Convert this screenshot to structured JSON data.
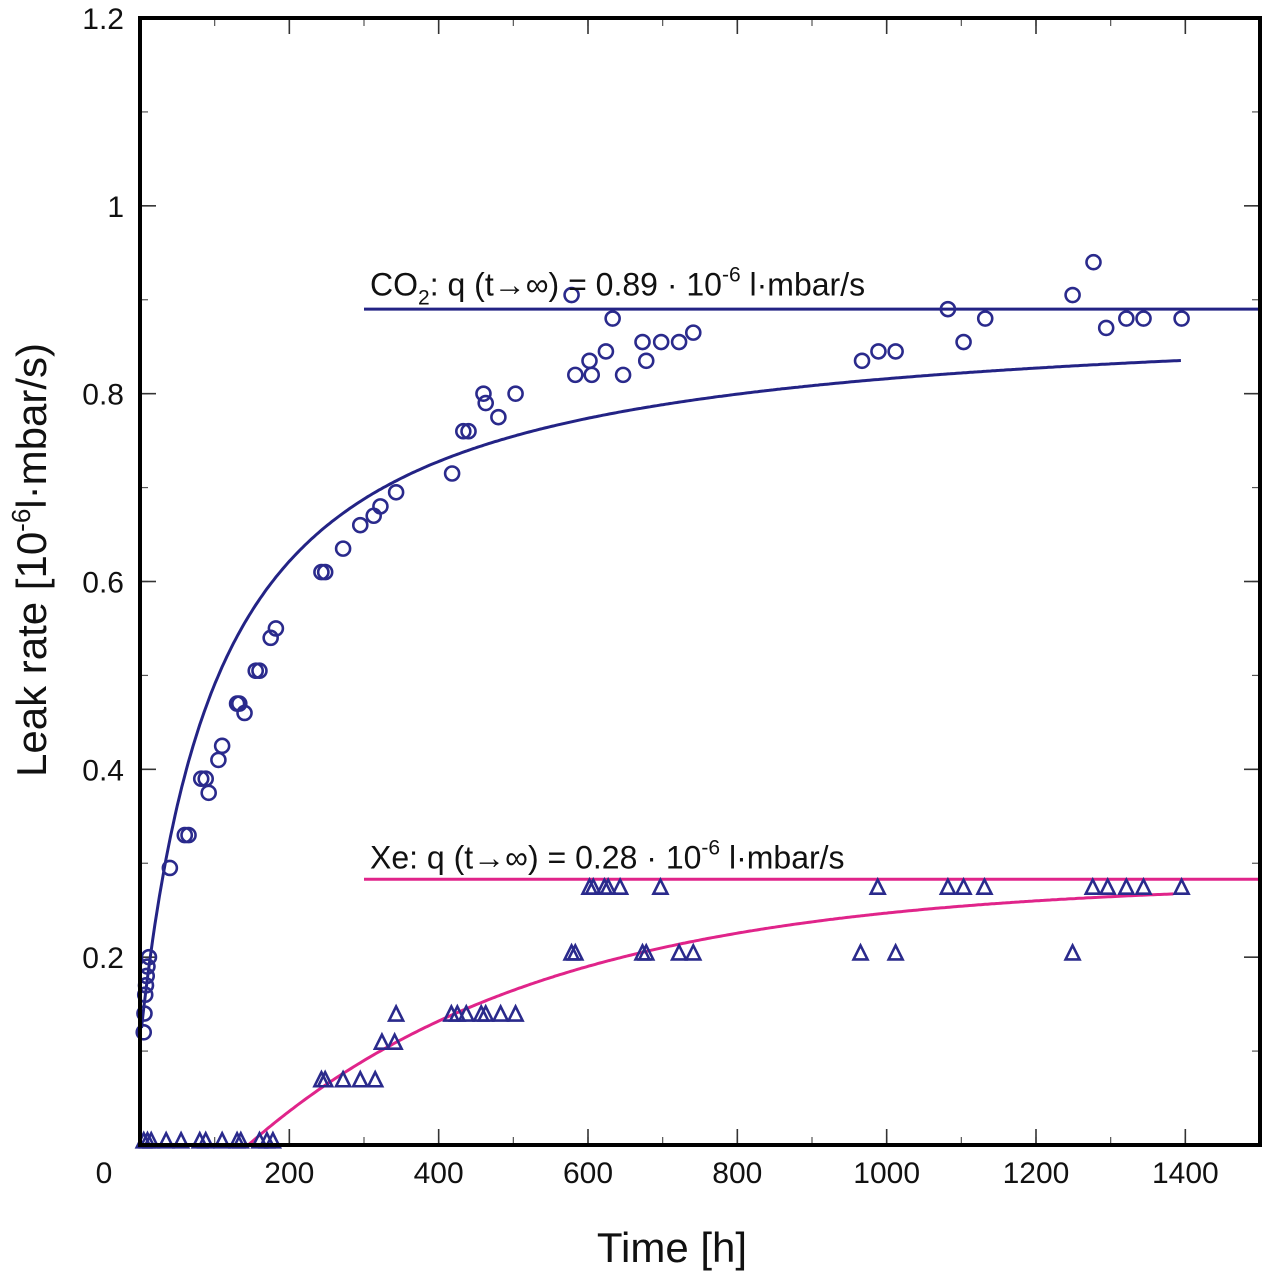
{
  "chart_data": {
    "type": "scatter",
    "title": "",
    "xlabel": "Time [h]",
    "ylabel": {
      "prefix": "Leak rate  [10",
      "sup": "-6",
      "suffix": "l·mbar/s)"
    },
    "xlim": [
      0,
      1500
    ],
    "ylim": [
      0,
      1.2
    ],
    "x_ticks": [
      {
        "value": 0,
        "label": "0"
      },
      {
        "value": 200,
        "label": "200"
      },
      {
        "value": 400,
        "label": "400"
      },
      {
        "value": 600,
        "label": "600"
      },
      {
        "value": 800,
        "label": "800"
      },
      {
        "value": 1000,
        "label": "1000"
      },
      {
        "value": 1200,
        "label": "1200"
      },
      {
        "value": 1400,
        "label": "1400"
      }
    ],
    "y_ticks": [
      {
        "value": 0.2,
        "label": "0.2"
      },
      {
        "value": 0.4,
        "label": "0.4"
      },
      {
        "value": 0.6,
        "label": "0.6"
      },
      {
        "value": 0.8,
        "label": "0.8"
      },
      {
        "value": 1.0,
        "label": "1"
      },
      {
        "value": 1.2,
        "label": "1.2"
      }
    ],
    "minor_x_step": 100,
    "minor_y_step": 0.1,
    "grid": false,
    "legend": "none",
    "colors": {
      "series": "#2a2a8c",
      "co2_fit": "#232385",
      "xe_fit": "#e0248a"
    },
    "annotations": [
      {
        "id": "co2",
        "parts": [
          "CO",
          "2",
          ": q (t→∞) = 0.89 · 10",
          "-6",
          " l·mbar/s"
        ],
        "x": 305,
        "y": 0.915
      },
      {
        "id": "xe",
        "parts": [
          "Xe: q (t→∞) = 0.28 · 10",
          "-6",
          " l·mbar/s"
        ],
        "x": 305,
        "y": 0.305
      }
    ],
    "series": [
      {
        "marker": "circle",
        "color": "#2a2a8c",
        "points": [
          [
            5,
            0.12
          ],
          [
            6,
            0.14
          ],
          [
            7,
            0.16
          ],
          [
            8,
            0.17
          ],
          [
            9,
            0.18
          ],
          [
            10,
            0.19
          ],
          [
            12,
            0.2
          ],
          [
            40,
            0.295
          ],
          [
            60,
            0.33
          ],
          [
            65,
            0.33
          ],
          [
            82,
            0.39
          ],
          [
            88,
            0.39
          ],
          [
            92,
            0.375
          ],
          [
            105,
            0.41
          ],
          [
            110,
            0.425
          ],
          [
            130,
            0.47
          ],
          [
            133,
            0.47
          ],
          [
            140,
            0.46
          ],
          [
            155,
            0.505
          ],
          [
            160,
            0.505
          ],
          [
            175,
            0.54
          ],
          [
            182,
            0.55
          ],
          [
            243,
            0.61
          ],
          [
            248,
            0.61
          ],
          [
            272,
            0.635
          ],
          [
            295,
            0.66
          ],
          [
            313,
            0.67
          ],
          [
            322,
            0.68
          ],
          [
            343,
            0.695
          ],
          [
            418,
            0.715
          ],
          [
            433,
            0.76
          ],
          [
            440,
            0.76
          ],
          [
            460,
            0.8
          ],
          [
            463,
            0.79
          ],
          [
            480,
            0.775
          ],
          [
            503,
            0.8
          ],
          [
            578,
            0.905
          ],
          [
            583,
            0.82
          ],
          [
            602,
            0.835
          ],
          [
            605,
            0.82
          ],
          [
            624,
            0.845
          ],
          [
            633,
            0.88
          ],
          [
            647,
            0.82
          ],
          [
            673,
            0.855
          ],
          [
            678,
            0.835
          ],
          [
            698,
            0.855
          ],
          [
            722,
            0.855
          ],
          [
            741,
            0.865
          ],
          [
            967,
            0.835
          ],
          [
            989,
            0.845
          ],
          [
            1012,
            0.845
          ],
          [
            1082,
            0.89
          ],
          [
            1103,
            0.855
          ],
          [
            1132,
            0.88
          ],
          [
            1249,
            0.905
          ],
          [
            1277,
            0.94
          ],
          [
            1294,
            0.87
          ],
          [
            1321,
            0.88
          ],
          [
            1344,
            0.88
          ],
          [
            1395,
            0.88
          ]
        ]
      },
      {
        "marker": "triangle",
        "color": "#2a2a8c",
        "points": [
          [
            5,
            0.005
          ],
          [
            10,
            0.005
          ],
          [
            15,
            0.005
          ],
          [
            35,
            0.005
          ],
          [
            55,
            0.005
          ],
          [
            80,
            0.005
          ],
          [
            88,
            0.005
          ],
          [
            110,
            0.005
          ],
          [
            130,
            0.005
          ],
          [
            135,
            0.005
          ],
          [
            160,
            0.005
          ],
          [
            170,
            0.005
          ],
          [
            178,
            0.005
          ],
          [
            243,
            0.07
          ],
          [
            248,
            0.07
          ],
          [
            272,
            0.07
          ],
          [
            295,
            0.07
          ],
          [
            315,
            0.07
          ],
          [
            324,
            0.11
          ],
          [
            341,
            0.11
          ],
          [
            343,
            0.14
          ],
          [
            417,
            0.14
          ],
          [
            425,
            0.14
          ],
          [
            437,
            0.14
          ],
          [
            457,
            0.14
          ],
          [
            463,
            0.14
          ],
          [
            483,
            0.14
          ],
          [
            503,
            0.14
          ],
          [
            578,
            0.205
          ],
          [
            583,
            0.205
          ],
          [
            602,
            0.275
          ],
          [
            607,
            0.275
          ],
          [
            622,
            0.275
          ],
          [
            627,
            0.275
          ],
          [
            643,
            0.275
          ],
          [
            673,
            0.205
          ],
          [
            678,
            0.205
          ],
          [
            697,
            0.275
          ],
          [
            722,
            0.205
          ],
          [
            741,
            0.205
          ],
          [
            965,
            0.205
          ],
          [
            988,
            0.275
          ],
          [
            1012,
            0.205
          ],
          [
            1082,
            0.275
          ],
          [
            1103,
            0.275
          ],
          [
            1131,
            0.275
          ],
          [
            1249,
            0.205
          ],
          [
            1276,
            0.275
          ],
          [
            1296,
            0.275
          ],
          [
            1321,
            0.275
          ],
          [
            1344,
            0.275
          ],
          [
            1395,
            0.275
          ]
        ]
      }
    ],
    "fits": [
      {
        "id": "co2_fit",
        "color": "#232385",
        "form": "hyperbolic",
        "a": 0.89,
        "b": 0.11,
        "c": 105,
        "x_from": 2,
        "x_to": 1395
      },
      {
        "id": "xe_fit",
        "color": "#e0248a",
        "form": "exponential",
        "a": 0.28,
        "t0": 145,
        "tau": 400,
        "x_from": 145,
        "x_to": 1385
      }
    ],
    "asymptotes": [
      {
        "id": "co2_asymptote",
        "value": 0.89,
        "x_from": 300,
        "x_to": 1500,
        "color": "#232385"
      },
      {
        "id": "xe_asymptote",
        "value": 0.283,
        "x_from": 300,
        "x_to": 1500,
        "color": "#e0248a"
      }
    ]
  }
}
